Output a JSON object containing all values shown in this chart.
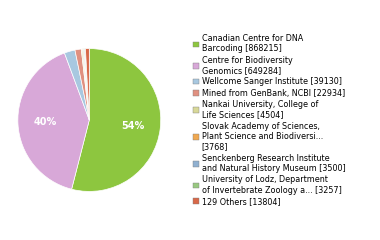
{
  "labels": [
    "Canadian Centre for DNA\nBarcoding [868215]",
    "Centre for Biodiversity\nGenomics [649284]",
    "Wellcome Sanger Institute [39130]",
    "Mined from GenBank, NCBI [22934]",
    "Nankai University, College of\nLife Sciences [4504]",
    "Slovak Academy of Sciences,\nPlant Science and Biodiversi...\n[3768]",
    "Senckenberg Research Institute\nand Natural History Museum [3500]",
    "University of Lodz, Department\nof Invertebrate Zoology a... [3257]",
    "129 Others [13804]"
  ],
  "values": [
    868215,
    649284,
    39130,
    22934,
    4504,
    3768,
    3500,
    3257,
    13804
  ],
  "colors": [
    "#8dc63f",
    "#d8a8d8",
    "#a8c8e0",
    "#e09080",
    "#d8d898",
    "#f0a850",
    "#90b0d0",
    "#98c880",
    "#d86848"
  ],
  "startangle": 90,
  "pct_threshold": 0.05,
  "legend_fontsize": 5.8,
  "label_fontsize": 7.0
}
